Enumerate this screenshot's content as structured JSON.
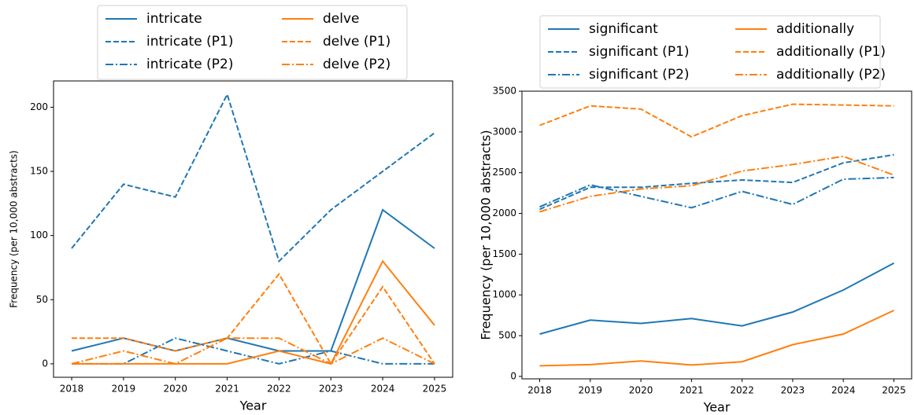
{
  "chart_data": [
    {
      "type": "line",
      "x_label": "Year",
      "y_label": "Frequency (per 10,000 abstracts)",
      "x": [
        2018,
        2019,
        2020,
        2021,
        2022,
        2023,
        2024,
        2025
      ],
      "xlim": [
        2017.65,
        2025.35
      ],
      "xticks": [
        2018,
        2019,
        2020,
        2021,
        2022,
        2023,
        2024,
        2025
      ],
      "ylim": [
        -10.5,
        220.5
      ],
      "yticks": [
        0,
        50,
        100,
        150,
        200
      ],
      "series": [
        {
          "name": "intricate",
          "color": "#1f77b4",
          "dash": "solid",
          "values": [
            10,
            20,
            10,
            20,
            10,
            10,
            120,
            90
          ]
        },
        {
          "name": "intricate (P1)",
          "color": "#1f77b4",
          "dash": "dashed",
          "values": [
            90,
            140,
            130,
            210,
            80,
            120,
            150,
            180
          ]
        },
        {
          "name": "intricate (P2)",
          "color": "#1f77b4",
          "dash": "dashdot",
          "values": [
            0,
            0,
            20,
            10,
            0,
            10,
            0,
            0
          ]
        },
        {
          "name": "delve",
          "color": "#ff7f0e",
          "dash": "solid",
          "values": [
            0,
            0,
            0,
            0,
            10,
            0,
            80,
            30
          ]
        },
        {
          "name": "delve (P1)",
          "color": "#ff7f0e",
          "dash": "dashed",
          "values": [
            20,
            20,
            10,
            20,
            70,
            0,
            60,
            0
          ]
        },
        {
          "name": "delve (P2)",
          "color": "#ff7f0e",
          "dash": "dashdot",
          "values": [
            0,
            10,
            0,
            20,
            20,
            0,
            20,
            0
          ]
        }
      ]
    },
    {
      "type": "line",
      "x_label": "Year",
      "y_label": "Frequency (per 10,000 abstracts)",
      "x": [
        2018,
        2019,
        2020,
        2021,
        2022,
        2023,
        2024,
        2025
      ],
      "xlim": [
        2017.65,
        2025.35
      ],
      "xticks": [
        2018,
        2019,
        2020,
        2021,
        2022,
        2023,
        2024,
        2025
      ],
      "ylim": [
        -30,
        3500
      ],
      "yticks": [
        0,
        500,
        1000,
        1500,
        2000,
        2500,
        3000,
        3500
      ],
      "series": [
        {
          "name": "significant",
          "color": "#1f77b4",
          "dash": "solid",
          "values": [
            520,
            690,
            650,
            710,
            620,
            790,
            1060,
            1390
          ]
        },
        {
          "name": "significant (P1)",
          "color": "#1f77b4",
          "dash": "dashed",
          "values": [
            2050,
            2320,
            2320,
            2370,
            2410,
            2380,
            2620,
            2720
          ]
        },
        {
          "name": "significant (P2)",
          "color": "#1f77b4",
          "dash": "dashdot",
          "values": [
            2080,
            2350,
            2210,
            2070,
            2270,
            2110,
            2420,
            2440
          ]
        },
        {
          "name": "additionally",
          "color": "#ff7f0e",
          "dash": "solid",
          "values": [
            130,
            145,
            190,
            140,
            180,
            390,
            520,
            810
          ]
        },
        {
          "name": "additionally (P1)",
          "color": "#ff7f0e",
          "dash": "dashed",
          "values": [
            3080,
            3320,
            3280,
            2940,
            3200,
            3340,
            3330,
            3320
          ]
        },
        {
          "name": "additionally (P2)",
          "color": "#ff7f0e",
          "dash": "dashdot",
          "values": [
            2020,
            2210,
            2300,
            2340,
            2520,
            2600,
            2700,
            2470
          ]
        }
      ]
    }
  ]
}
